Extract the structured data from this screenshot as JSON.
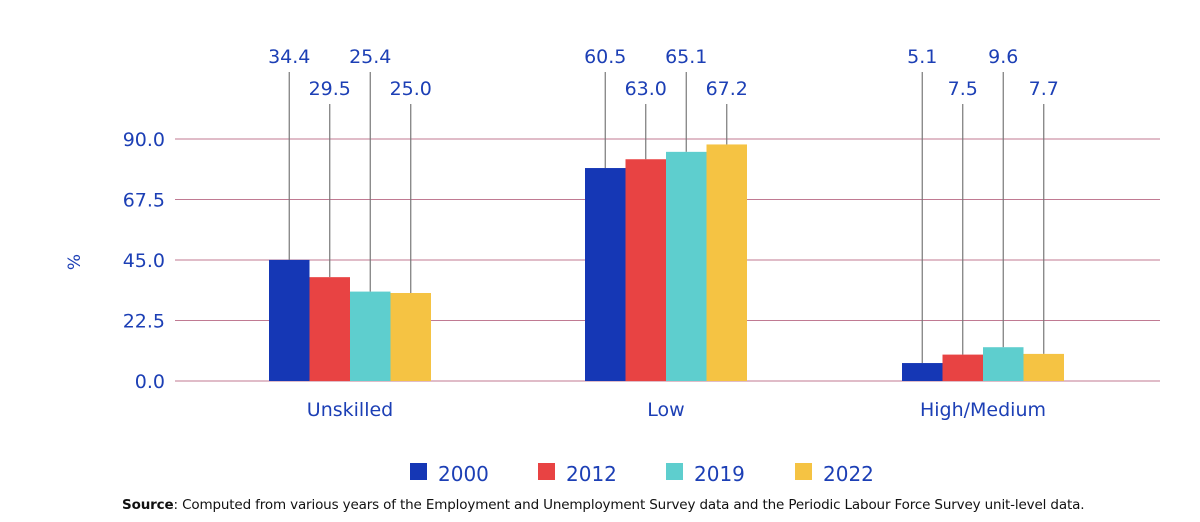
{
  "chart_data": {
    "type": "bar",
    "title": "",
    "xlabel": "",
    "ylabel": "%",
    "ylim": [
      0,
      90
    ],
    "yticks": [
      "0.0",
      "22.5",
      "45.0",
      "67.5",
      "90.0"
    ],
    "ytick_values": [
      0,
      22.5,
      45,
      67.5,
      90
    ],
    "grid": true,
    "legend_position": "bottom",
    "categories": [
      "Unskilled",
      "Low",
      "High/Medium"
    ],
    "series": [
      {
        "name": "2000",
        "color": "#1537b5",
        "values": [
          34.4,
          60.5,
          5.1
        ],
        "labels": [
          "34.4",
          "60.5",
          "5.1"
        ]
      },
      {
        "name": "2012",
        "color": "#e84343",
        "values": [
          29.5,
          63.0,
          7.5
        ],
        "labels": [
          "29.5",
          "63.0",
          "7.5"
        ]
      },
      {
        "name": "2019",
        "color": "#5ecece",
        "values": [
          25.4,
          65.1,
          9.6
        ],
        "labels": [
          "25.4",
          "65.1",
          "9.6"
        ]
      },
      {
        "name": "2022",
        "color": "#f5c343",
        "values": [
          25.0,
          67.2,
          7.7
        ],
        "labels": [
          "25.0",
          "67.2",
          "7.7"
        ]
      }
    ]
  },
  "source": {
    "label": "Source",
    "text": ": Computed from various years of the Employment and Unemployment Survey data and the Periodic Labour Force Survey unit-level data."
  }
}
